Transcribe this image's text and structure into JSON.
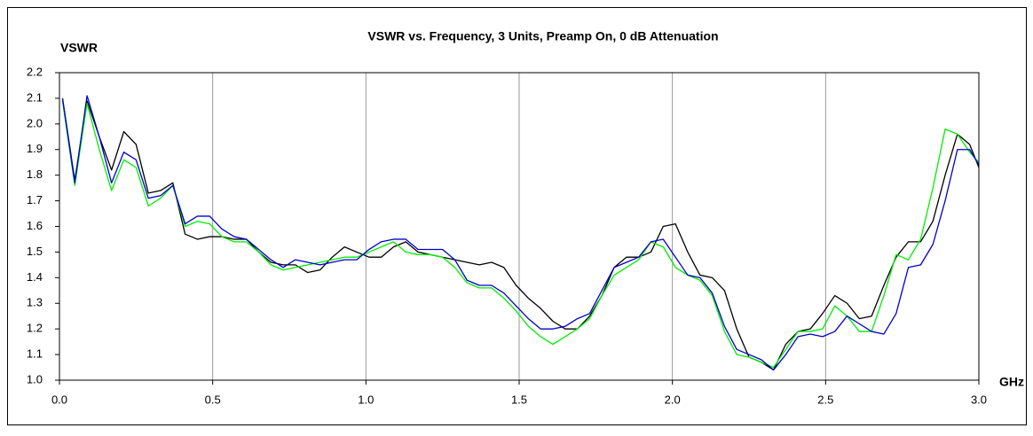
{
  "chart_data": {
    "type": "line",
    "title": "VSWR vs. Frequency, 3 Units, Preamp On, 0 dB Attenuation",
    "y_label": "VSWR",
    "x_label": "GHz",
    "x": [
      0.01,
      0.05,
      0.09,
      0.13,
      0.17,
      0.21,
      0.25,
      0.29,
      0.33,
      0.37,
      0.41,
      0.45,
      0.49,
      0.53,
      0.57,
      0.61,
      0.65,
      0.69,
      0.73,
      0.77,
      0.81,
      0.85,
      0.89,
      0.93,
      0.97,
      1.01,
      1.05,
      1.09,
      1.13,
      1.17,
      1.21,
      1.25,
      1.29,
      1.33,
      1.37,
      1.41,
      1.45,
      1.49,
      1.53,
      1.57,
      1.61,
      1.65,
      1.69,
      1.73,
      1.77,
      1.81,
      1.85,
      1.89,
      1.93,
      1.97,
      2.01,
      2.05,
      2.09,
      2.13,
      2.17,
      2.21,
      2.25,
      2.29,
      2.33,
      2.37,
      2.41,
      2.45,
      2.49,
      2.53,
      2.57,
      2.61,
      2.65,
      2.69,
      2.73,
      2.77,
      2.81,
      2.85,
      2.89,
      2.93,
      2.97,
      3.0
    ],
    "series": [
      {
        "color": "#000000",
        "values": [
          2.1,
          1.78,
          2.09,
          1.95,
          1.82,
          1.97,
          1.92,
          1.73,
          1.74,
          1.77,
          1.57,
          1.55,
          1.56,
          1.56,
          1.55,
          1.55,
          1.5,
          1.46,
          1.45,
          1.45,
          1.42,
          1.43,
          1.48,
          1.52,
          1.5,
          1.48,
          1.48,
          1.52,
          1.54,
          1.5,
          1.49,
          1.48,
          1.47,
          1.46,
          1.45,
          1.46,
          1.44,
          1.37,
          1.32,
          1.28,
          1.23,
          1.2,
          1.2,
          1.25,
          1.33,
          1.44,
          1.48,
          1.48,
          1.5,
          1.6,
          1.61,
          1.5,
          1.41,
          1.4,
          1.35,
          1.2,
          1.09,
          1.07,
          1.04,
          1.14,
          1.19,
          1.2,
          1.26,
          1.33,
          1.3,
          1.24,
          1.25,
          1.37,
          1.48,
          1.54,
          1.54,
          1.62,
          1.8,
          1.96,
          1.92,
          1.83
        ]
      },
      {
        "color": "#00ee00",
        "values": [
          2.09,
          1.76,
          2.08,
          1.9,
          1.74,
          1.86,
          1.83,
          1.68,
          1.71,
          1.76,
          1.6,
          1.62,
          1.61,
          1.56,
          1.54,
          1.54,
          1.5,
          1.45,
          1.43,
          1.44,
          1.45,
          1.46,
          1.47,
          1.48,
          1.48,
          1.5,
          1.52,
          1.54,
          1.5,
          1.49,
          1.49,
          1.48,
          1.44,
          1.38,
          1.36,
          1.36,
          1.32,
          1.27,
          1.21,
          1.17,
          1.14,
          1.17,
          1.2,
          1.24,
          1.33,
          1.41,
          1.44,
          1.47,
          1.54,
          1.52,
          1.44,
          1.41,
          1.39,
          1.33,
          1.19,
          1.1,
          1.09,
          1.07,
          1.05,
          1.12,
          1.19,
          1.19,
          1.2,
          1.29,
          1.25,
          1.19,
          1.19,
          1.33,
          1.49,
          1.47,
          1.55,
          1.75,
          1.98,
          1.96,
          1.89,
          1.85
        ]
      },
      {
        "color": "#0000cc",
        "values": [
          2.1,
          1.77,
          2.11,
          1.95,
          1.77,
          1.89,
          1.86,
          1.71,
          1.72,
          1.76,
          1.61,
          1.64,
          1.64,
          1.59,
          1.56,
          1.55,
          1.51,
          1.47,
          1.44,
          1.47,
          1.46,
          1.45,
          1.46,
          1.47,
          1.47,
          1.51,
          1.54,
          1.55,
          1.55,
          1.51,
          1.51,
          1.51,
          1.47,
          1.39,
          1.37,
          1.37,
          1.34,
          1.29,
          1.24,
          1.2,
          1.2,
          1.21,
          1.24,
          1.26,
          1.35,
          1.44,
          1.46,
          1.48,
          1.54,
          1.55,
          1.48,
          1.41,
          1.4,
          1.34,
          1.21,
          1.12,
          1.1,
          1.08,
          1.04,
          1.1,
          1.17,
          1.18,
          1.17,
          1.19,
          1.25,
          1.22,
          1.19,
          1.18,
          1.26,
          1.44,
          1.45,
          1.53,
          1.7,
          1.9,
          1.9,
          1.84
        ]
      }
    ],
    "xlim": [
      0,
      3
    ],
    "xticks": [
      {
        "value": 0,
        "label": "0.0"
      },
      0.5,
      {
        "value": 1,
        "label": "1.0"
      },
      1.5,
      {
        "value": 2,
        "label": "2.0"
      },
      2.5,
      {
        "value": 3,
        "label": "3.0"
      }
    ],
    "ylim": [
      1,
      2.2
    ],
    "yticks": [
      {
        "value": 1,
        "label": "1.0"
      },
      1.1,
      1.2,
      1.3,
      1.4,
      1.5,
      1.6,
      1.7,
      1.8,
      1.9,
      {
        "value": 2,
        "label": "2.0"
      },
      2.1,
      2.2
    ],
    "grid": "x"
  }
}
